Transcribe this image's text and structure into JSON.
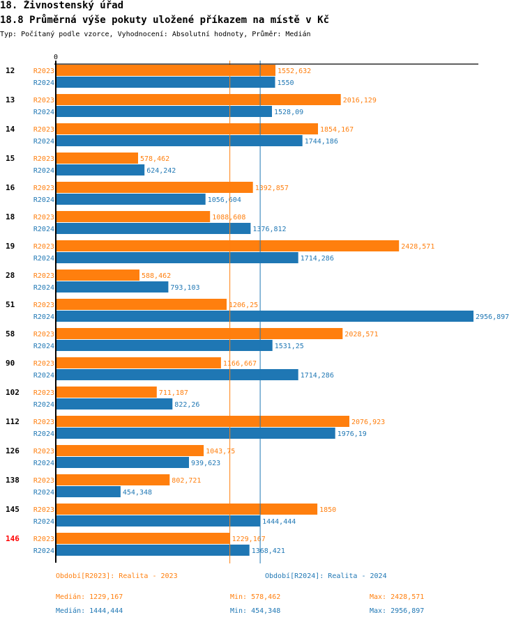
{
  "header": {
    "section_title": "18. Živnostenský úřad",
    "chart_title": "18.8 Průměrná výše pokuty uložené příkazem na místě v Kč",
    "subtitle": "Typ: Počítaný podle vzorce, Vyhodnocení: Absolutní hodnoty, Průměr: Medián"
  },
  "colors": {
    "r2023": "#ff7f0e",
    "r2024": "#1f77b4",
    "highlight_category": "#ff0000",
    "axis": "#000000"
  },
  "chart_data": {
    "type": "bar",
    "orientation": "horizontal",
    "title": "18.8 Průměrná výše pokuty uložené příkazem na místě v Kč",
    "xlabel": "",
    "ylabel": "",
    "x_tick_labels": [
      "0"
    ],
    "xlim": [
      0,
      2956.897
    ],
    "grid": false,
    "categories": [
      "12",
      "13",
      "14",
      "15",
      "16",
      "18",
      "19",
      "28",
      "51",
      "58",
      "90",
      "102",
      "112",
      "126",
      "138",
      "145",
      "146"
    ],
    "highlighted_category": "146",
    "series": [
      {
        "name": "R2023",
        "values": [
          1552.632,
          2016.129,
          1854.167,
          578.462,
          1392.857,
          1088.608,
          2428.571,
          588.462,
          1206.25,
          2028.571,
          1166.667,
          711.187,
          2076.923,
          1043.75,
          802.721,
          1850,
          1229.167
        ],
        "labels": [
          "1552,632",
          "2016,129",
          "1854,167",
          "578,462",
          "1392,857",
          "1088,608",
          "2428,571",
          "588,462",
          "1206,25",
          "2028,571",
          "1166,667",
          "711,187",
          "2076,923",
          "1043,75",
          "802,721",
          "1850",
          "1229,167"
        ],
        "median": 1229.167
      },
      {
        "name": "R2024",
        "values": [
          1550,
          1528.09,
          1744.186,
          624.242,
          1056.604,
          1376.812,
          1714.286,
          793.103,
          2956.897,
          1531.25,
          1714.286,
          822.26,
          1976.19,
          939.623,
          454.348,
          1444.444,
          1368.421
        ],
        "labels": [
          "1550",
          "1528,09",
          "1744,186",
          "624,242",
          "1056,604",
          "1376,812",
          "1714,286",
          "793,103",
          "2956,897",
          "1531,25",
          "1714,286",
          "822,26",
          "1976,19",
          "939,623",
          "454,348",
          "1444,444",
          "1368,421"
        ],
        "median": 1444.444
      }
    ],
    "reference_lines": [
      {
        "series": "R2023",
        "type": "median",
        "value": 1229.167
      },
      {
        "series": "R2024",
        "type": "median",
        "value": 1444.444
      }
    ]
  },
  "legend": {
    "r2023": "Období[R2023]: Realita - 2023",
    "r2024": "Období[R2024]: Realita - 2024"
  },
  "stats": {
    "r2023": {
      "median": "Medián: 1229,167",
      "min": "Min: 578,462",
      "max": "Max: 2428,571"
    },
    "r2024": {
      "median": "Medián: 1444,444",
      "min": "Min: 454,348",
      "max": "Max: 2956,897"
    }
  }
}
